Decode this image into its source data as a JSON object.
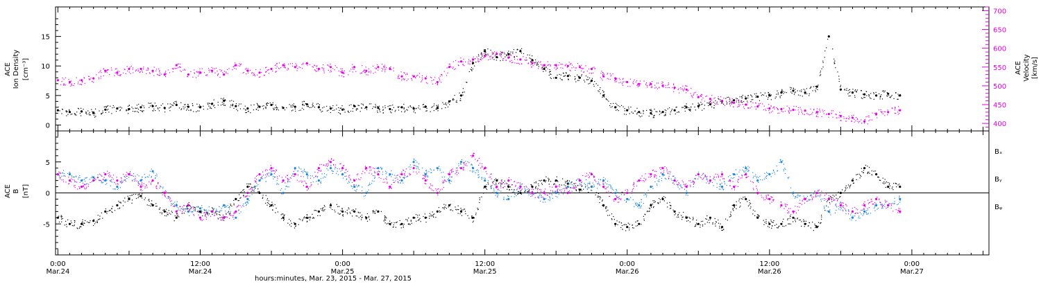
{
  "colors": {
    "black": "#000000",
    "blue": "#1a86dc",
    "magenta": "#e600e6",
    "axis": "#000000"
  },
  "chart_data": [
    {
      "type": "scatter",
      "panel": "top",
      "ylabel_left": [
        "ACE",
        "Ion Density",
        "[cm⁻³]"
      ],
      "ylabel_right": [
        "ACE",
        "Velocity",
        "[km/s]"
      ],
      "ylim_left": [
        -1,
        20
      ],
      "ylim_right": [
        380,
        710
      ],
      "yticks_left": [
        0,
        5,
        10,
        15
      ],
      "yticks_right": [
        400,
        450,
        500,
        550,
        600,
        650,
        700
      ],
      "series": [
        {
          "axis": "left",
          "color": "black",
          "x": [
            0,
            1,
            2,
            3,
            4,
            5,
            6,
            7,
            8,
            9,
            10,
            11,
            12,
            13,
            14,
            15,
            16,
            17,
            18,
            19,
            20,
            21,
            22,
            23,
            24,
            25,
            26,
            27,
            28,
            29,
            30,
            31,
            32,
            33,
            34,
            35,
            36,
            37,
            38,
            39,
            40,
            41,
            42,
            43,
            44,
            45,
            46,
            47,
            48,
            49,
            50,
            51,
            52,
            53,
            54,
            55,
            56,
            57,
            58,
            59,
            60,
            61,
            62,
            63,
            64,
            65,
            66,
            67,
            68,
            69,
            70,
            71
          ],
          "y": [
            2.5,
            2.2,
            2.3,
            2.1,
            2.6,
            2.8,
            2.7,
            3.0,
            3.2,
            2.9,
            3.4,
            3.1,
            3.0,
            3.6,
            4.1,
            3.2,
            2.8,
            3.1,
            3.4,
            2.9,
            3.1,
            3.5,
            3.0,
            2.8,
            2.6,
            3.2,
            3.0,
            2.9,
            2.7,
            3.0,
            2.8,
            3.1,
            2.9,
            4.0,
            5.0,
            10.5,
            12.5,
            11.5,
            12.0,
            12.5,
            11.0,
            9.5,
            8.0,
            8.3,
            8.0,
            7.5,
            5.0,
            3.0,
            2.5,
            2.2,
            2.0,
            2.2,
            2.5,
            3.0,
            3.2,
            3.5,
            4.0,
            4.2,
            4.5,
            4.8,
            5.0,
            5.5,
            5.8,
            5.5,
            6.5,
            15.0,
            6.0,
            5.5,
            5.2,
            5.0,
            5.3,
            5.0
          ]
        },
        {
          "axis": "right",
          "color": "magenta",
          "x": [
            0,
            1,
            2,
            3,
            4,
            5,
            6,
            7,
            8,
            9,
            10,
            11,
            12,
            13,
            14,
            15,
            16,
            17,
            18,
            19,
            20,
            21,
            22,
            23,
            24,
            25,
            26,
            27,
            28,
            29,
            30,
            31,
            32,
            33,
            34,
            35,
            36,
            37,
            38,
            39,
            40,
            41,
            42,
            43,
            44,
            45,
            46,
            47,
            48,
            49,
            50,
            51,
            52,
            53,
            54,
            55,
            56,
            57,
            58,
            59,
            60,
            61,
            62,
            63,
            64,
            65,
            66,
            67,
            68,
            69,
            70,
            71
          ],
          "y": [
            515,
            510,
            515,
            520,
            540,
            535,
            545,
            545,
            540,
            530,
            555,
            530,
            535,
            540,
            530,
            555,
            540,
            535,
            545,
            555,
            550,
            560,
            545,
            550,
            535,
            550,
            540,
            550,
            545,
            525,
            525,
            520,
            510,
            550,
            565,
            570,
            580,
            585,
            575,
            570,
            560,
            555,
            555,
            553,
            550,
            545,
            525,
            520,
            510,
            505,
            505,
            500,
            495,
            490,
            470,
            465,
            460,
            455,
            450,
            445,
            440,
            438,
            436,
            434,
            430,
            425,
            420,
            415,
            405,
            425,
            430,
            435
          ]
        }
      ]
    },
    {
      "type": "scatter",
      "panel": "bottom",
      "ylabel_left": [
        "ACE",
        "B",
        "[nT]"
      ],
      "ylim": [
        -10,
        10
      ],
      "yticks": [
        -5,
        0,
        5
      ],
      "zero_line": true,
      "legend": [
        "Bₓ",
        "Bᵧ",
        "Bᵩ"
      ],
      "legend_placement": "right",
      "series": [
        {
          "color": "black",
          "x": [
            0,
            1,
            2,
            3,
            4,
            5,
            6,
            7,
            8,
            9,
            10,
            11,
            12,
            13,
            14,
            15,
            16,
            17,
            18,
            19,
            20,
            21,
            22,
            23,
            24,
            25,
            26,
            27,
            28,
            29,
            30,
            31,
            32,
            33,
            34,
            35,
            36,
            37,
            38,
            39,
            40,
            41,
            42,
            43,
            44,
            45,
            46,
            47,
            48,
            49,
            50,
            51,
            52,
            53,
            54,
            55,
            56,
            57,
            58,
            59,
            60,
            61,
            62,
            63,
            64,
            65,
            66,
            67,
            68,
            69,
            70,
            71
          ],
          "y": [
            -4,
            -5,
            -5,
            -4.5,
            -3,
            -2,
            -1,
            -0.5,
            -2,
            -3,
            -4,
            -2,
            -3,
            -3,
            -4,
            -1,
            1,
            0,
            -2,
            -4,
            -5,
            -4,
            -3,
            -2,
            -3,
            -3,
            -4,
            -3,
            -5,
            -5,
            -4,
            -4,
            -3,
            -2,
            -3,
            -4,
            1,
            2,
            1,
            0,
            1,
            2,
            2,
            1.5,
            0.5,
            1,
            -2,
            -5,
            -5.5,
            -5,
            -2,
            -1,
            -3,
            -4,
            -5,
            -4,
            -5.5,
            -2,
            -1,
            -4,
            -5,
            -5,
            -4,
            -5,
            -5.5,
            -1,
            0,
            2,
            4,
            3,
            1,
            1
          ]
        },
        {
          "color": "blue",
          "x": [
            0,
            1,
            2,
            3,
            4,
            5,
            6,
            7,
            8,
            9,
            10,
            11,
            12,
            13,
            14,
            15,
            16,
            17,
            18,
            19,
            20,
            21,
            22,
            23,
            24,
            25,
            26,
            27,
            28,
            29,
            30,
            31,
            32,
            33,
            34,
            35,
            36,
            37,
            38,
            39,
            40,
            41,
            42,
            43,
            44,
            45,
            46,
            47,
            48,
            49,
            50,
            51,
            52,
            53,
            54,
            55,
            56,
            57,
            58,
            59,
            60,
            61,
            62,
            63,
            64,
            65,
            66,
            67,
            68,
            69,
            70,
            71
          ],
          "y": [
            3,
            3,
            2,
            2.5,
            2,
            1,
            3,
            2,
            3.5,
            0,
            -2,
            -3,
            -2.5,
            -3,
            -2,
            -4,
            -1,
            2,
            3,
            0,
            4,
            3,
            2,
            4,
            3,
            1,
            0,
            4,
            3,
            2,
            5,
            3,
            4,
            2,
            5,
            4,
            2,
            0,
            -1,
            1,
            0,
            -1,
            0,
            1,
            2,
            1,
            2,
            0,
            -1,
            -2,
            1,
            3,
            2,
            0,
            3,
            2,
            1,
            3,
            4,
            2,
            3,
            5,
            0,
            -1,
            0,
            -3,
            -2,
            -4,
            -3,
            -2,
            -2,
            -1
          ]
        },
        {
          "color": "magenta",
          "x": [
            0,
            1,
            2,
            3,
            4,
            5,
            6,
            7,
            8,
            9,
            10,
            11,
            12,
            13,
            14,
            15,
            16,
            17,
            18,
            19,
            20,
            21,
            22,
            23,
            24,
            25,
            26,
            27,
            28,
            29,
            30,
            31,
            32,
            33,
            34,
            35,
            36,
            37,
            38,
            39,
            40,
            41,
            42,
            43,
            44,
            45,
            46,
            47,
            48,
            49,
            50,
            51,
            52,
            53,
            54,
            55,
            56,
            57,
            58,
            59,
            60,
            61,
            62,
            63,
            64,
            65,
            66,
            67,
            68,
            69,
            70,
            71
          ],
          "y": [
            3,
            2,
            1,
            2,
            3,
            2,
            3,
            1,
            2,
            0,
            -3,
            -2,
            -4,
            -3,
            -4,
            -3,
            0,
            3,
            4,
            2,
            3,
            1,
            4,
            5,
            4,
            2,
            4,
            3,
            1,
            3,
            4,
            2,
            0,
            3,
            4,
            6,
            4,
            1,
            2,
            1,
            0,
            0,
            1,
            0,
            2,
            3,
            1,
            -1,
            0,
            2,
            3,
            4,
            2,
            1,
            3,
            2,
            3,
            1,
            3,
            0,
            -1,
            -2,
            -3,
            -1,
            0,
            -1,
            -2,
            -3,
            -2,
            -1,
            -2,
            -3
          ]
        }
      ]
    }
  ],
  "x_axis": {
    "tick_positions_hours": [
      0,
      12,
      24,
      36,
      48,
      60,
      72
    ],
    "tick_labels": [
      [
        "0:00",
        "Mar.24"
      ],
      [
        "12:00",
        "Mar.24"
      ],
      [
        "0:00",
        "Mar.25"
      ],
      [
        "12:00",
        "Mar.25"
      ],
      [
        "0:00",
        "Mar.26"
      ],
      [
        "12:00",
        "Mar.26"
      ],
      [
        "0:00",
        "Mar.27"
      ]
    ],
    "xlim_hours": [
      -0.2,
      78.5
    ],
    "xlabel": "hours:minutes, Mar. 23, 2015 - Mar. 27, 2015"
  }
}
